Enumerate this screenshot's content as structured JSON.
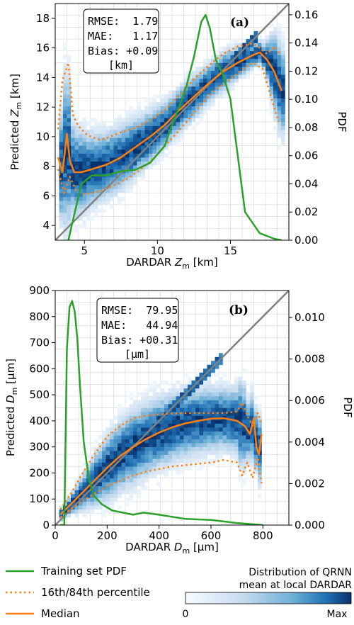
{
  "chart_data": [
    {
      "type": "scatter",
      "panel_label": "(a)",
      "xlabel": "DARDAR Z_m [km]",
      "ylabel": "Predicted Z_m [km]",
      "y2label": "PDF",
      "xlim": [
        3,
        19
      ],
      "ylim": [
        3,
        19
      ],
      "y2lim": [
        0,
        0.168
      ],
      "xticks": [
        5,
        10,
        15
      ],
      "yticks": [
        4,
        6,
        8,
        10,
        12,
        14,
        16,
        18
      ],
      "y2ticks": [
        0.0,
        0.02,
        0.04,
        0.06,
        0.08,
        0.1,
        0.12,
        0.14,
        0.16
      ],
      "stats_box": {
        "line1": "RMSE:  1.79",
        "line2": "MAE:   1.17",
        "line3": "Bias: +0.09",
        "unit": "[km]"
      },
      "series": [
        {
          "name": "Median",
          "x": [
            3.2,
            3.5,
            3.8,
            4.0,
            4.3,
            4.8,
            5.5,
            6.5,
            7.5,
            8.5,
            9.5,
            10.5,
            11.5,
            12.5,
            13.5,
            14.5,
            15.5,
            16.5,
            17.0,
            17.5,
            18.0,
            18.5
          ],
          "y": [
            8.6,
            7.6,
            10.2,
            8.4,
            7.6,
            7.6,
            7.8,
            8.1,
            8.6,
            9.3,
            10.0,
            10.8,
            11.8,
            12.7,
            13.6,
            14.4,
            15.0,
            15.5,
            15.7,
            15.2,
            14.4,
            13.1
          ]
        },
        {
          "name": "16th percentile",
          "x": [
            3.2,
            3.6,
            4.0,
            4.4,
            5.0,
            6.0,
            7.0,
            8.0,
            9.0,
            10.0,
            11.0,
            12.0,
            13.0,
            14.0,
            15.0,
            15.8,
            16.5,
            17.2,
            17.8,
            18.3
          ],
          "y": [
            7.8,
            6.2,
            7.3,
            6.4,
            6.1,
            6.3,
            6.7,
            7.2,
            7.9,
            8.8,
            9.9,
            11.0,
            12.2,
            13.2,
            13.9,
            14.5,
            15.0,
            14.6,
            12.6,
            11.0
          ]
        },
        {
          "name": "84th percentile",
          "x": [
            3.2,
            3.5,
            3.9,
            4.2,
            4.6,
            5.2,
            6.0,
            6.5,
            7.5,
            8.5,
            9.5,
            10.5,
            11.5,
            12.5,
            13.5,
            14.5,
            15.5,
            16.5,
            17.0,
            17.5,
            18.0,
            18.4
          ],
          "y": [
            10.5,
            13.8,
            15.0,
            11.5,
            10.7,
            10.1,
            9.8,
            9.9,
            10.3,
            10.6,
            11.1,
            11.8,
            12.8,
            13.9,
            14.8,
            15.6,
            16.1,
            16.3,
            16.0,
            15.6,
            16.1,
            15.5
          ]
        },
        {
          "name": "Training set PDF",
          "x": [
            3.9,
            4.3,
            4.8,
            5.5,
            6.5,
            7.5,
            8.5,
            9.5,
            10.5,
            11.0,
            11.5,
            12.0,
            12.5,
            13.0,
            13.3,
            13.6,
            14.0,
            14.5,
            15.0,
            15.5,
            16.0,
            17.0,
            18.0,
            18.5
          ],
          "y": [
            0.0,
            0.018,
            0.04,
            0.046,
            0.046,
            0.049,
            0.05,
            0.055,
            0.067,
            0.082,
            0.095,
            0.11,
            0.13,
            0.155,
            0.16,
            0.15,
            0.128,
            0.117,
            0.1,
            0.06,
            0.02,
            0.005,
            0.001,
            0.0
          ]
        }
      ]
    },
    {
      "type": "scatter",
      "panel_label": "(b)",
      "xlabel": "DARDAR D_m [µm]",
      "ylabel": "Predicted D_m [µm]",
      "y2label": "PDF",
      "xlim": [
        0,
        900
      ],
      "ylim": [
        0,
        900
      ],
      "y2lim": [
        0,
        0.0113
      ],
      "xticks": [
        0,
        200,
        400,
        600,
        800
      ],
      "yticks": [
        0,
        100,
        200,
        300,
        400,
        500,
        600,
        700,
        800,
        900
      ],
      "y2ticks": [
        0.0,
        0.002,
        0.004,
        0.006,
        0.008,
        0.01
      ],
      "stats_box": {
        "line1": "RMSE:  79.95",
        "line2": "MAE:   44.94",
        "line3": "Bias: +00.31",
        "unit": "[µm]"
      },
      "series": [
        {
          "name": "Median",
          "x": [
            20,
            60,
            100,
            150,
            200,
            250,
            300,
            350,
            400,
            450,
            500,
            550,
            600,
            650,
            700,
            730,
            750,
            765,
            775,
            785,
            795
          ],
          "y": [
            40,
            80,
            120,
            170,
            220,
            265,
            300,
            330,
            355,
            375,
            390,
            400,
            408,
            410,
            400,
            380,
            350,
            410,
            300,
            270,
            350
          ]
        },
        {
          "name": "16th percentile",
          "x": [
            20,
            60,
            100,
            150,
            200,
            250,
            300,
            350,
            400,
            450,
            500,
            550,
            600,
            650,
            700,
            720,
            740,
            760,
            780,
            795
          ],
          "y": [
            30,
            60,
            90,
            120,
            150,
            170,
            190,
            205,
            215,
            225,
            230,
            235,
            240,
            250,
            240,
            190,
            240,
            180,
            260,
            160
          ]
        },
        {
          "name": "84th percentile",
          "x": [
            20,
            60,
            100,
            150,
            200,
            250,
            300,
            350,
            400,
            450,
            500,
            550,
            600,
            650,
            700,
            720,
            740,
            760,
            780,
            795
          ],
          "y": [
            60,
            120,
            190,
            270,
            340,
            380,
            410,
            420,
            425,
            428,
            430,
            430,
            430,
            430,
            435,
            470,
            420,
            380,
            430,
            390
          ]
        },
        {
          "name": "Training set PDF",
          "x": [
            20,
            35,
            45,
            55,
            65,
            75,
            85,
            95,
            110,
            130,
            150,
            180,
            220,
            260,
            300,
            340,
            400,
            450,
            500,
            600,
            700,
            750,
            780,
            800
          ],
          "y": [
            0.0,
            0.0,
            0.0085,
            0.0105,
            0.0108,
            0.0103,
            0.009,
            0.0068,
            0.004,
            0.0022,
            0.0014,
            0.001,
            0.0007,
            0.0006,
            0.0005,
            0.0006,
            0.0005,
            0.0004,
            0.0003,
            0.00025,
            0.0001,
            5e-05,
            2e-05,
            0.0
          ]
        }
      ]
    }
  ],
  "legend": {
    "training": "Training set PDF",
    "percentile": "16th/84th percentile",
    "median": "Median"
  },
  "colorbar": {
    "title_line1": "Distribution of QRNN",
    "title_line2": "mean at local DARDAR",
    "min_label": "0",
    "max_label": "Max"
  },
  "colors": {
    "median": "#ff7f0e",
    "pdf": "#2ca02c",
    "identity": "#808080",
    "heat": "#08306b"
  }
}
